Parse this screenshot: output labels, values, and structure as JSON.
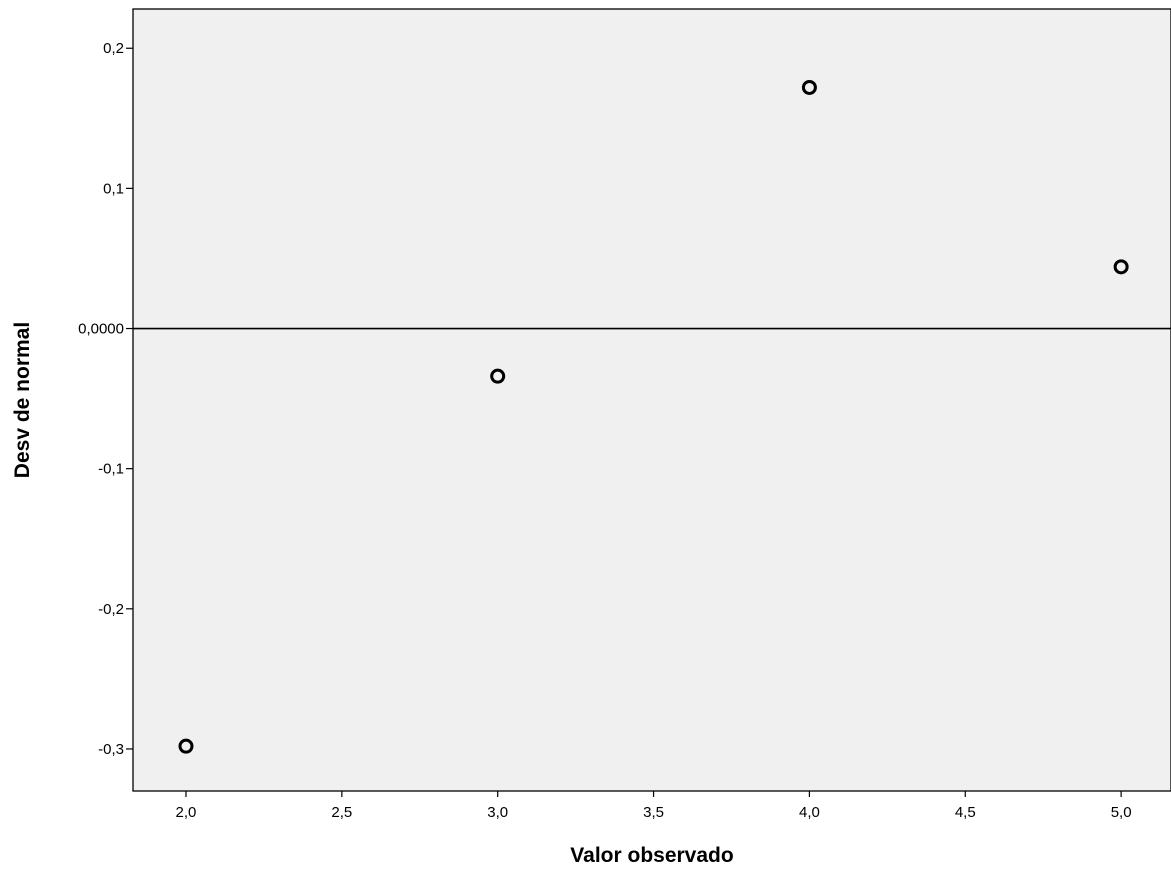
{
  "chart_data": {
    "type": "scatter",
    "title": "",
    "xlabel": "Valor observado",
    "ylabel": "Desv de normal",
    "xlim": [
      1.83,
      5.16
    ],
    "ylim": [
      -0.33,
      0.228
    ],
    "x_ticks": [
      2.0,
      2.5,
      3.0,
      3.5,
      4.0,
      4.5,
      5.0
    ],
    "x_tick_labels": [
      "2,0",
      "2,5",
      "3,0",
      "3,5",
      "4,0",
      "4,5",
      "5,0"
    ],
    "y_ticks": [
      0.2,
      0.1,
      0.0,
      -0.1,
      -0.2,
      -0.3
    ],
    "y_tick_labels": [
      "0,2",
      "0,1",
      "0,0000",
      "-0,1",
      "-0,2",
      "-0,3"
    ],
    "reference_line_y": 0.0,
    "grid": false,
    "legend": "none",
    "colors": {
      "plot_background": "#f0f0f0",
      "marker": "#000000",
      "axis": "#000000"
    },
    "series": [
      {
        "x": [
          2.0,
          3.0,
          4.0,
          5.0
        ],
        "y": [
          -0.298,
          -0.034,
          0.172,
          0.044
        ]
      }
    ]
  }
}
